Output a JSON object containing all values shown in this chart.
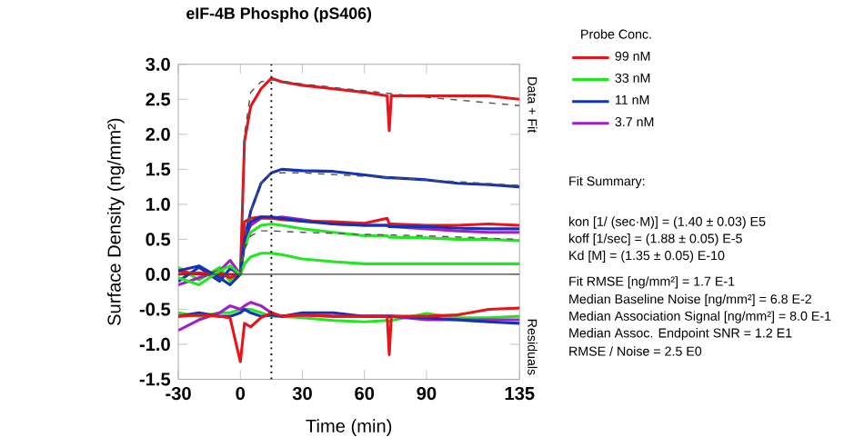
{
  "chart_data": {
    "type": "line",
    "title": "eIF-4B Phospho (pS406)",
    "xlabel": "Time (min)",
    "ylabel": "Surface Density (ng/mm²)",
    "legend_title": "Probe Conc.",
    "legend": "right",
    "line_style": "solid",
    "x": [
      -30,
      -20,
      -10,
      -5,
      0,
      2,
      5,
      10,
      15,
      20,
      30,
      45,
      60,
      71,
      72,
      73,
      90,
      105,
      120,
      135
    ],
    "xlim": [
      -30,
      135
    ],
    "ylim": [
      -1.5,
      3.0
    ],
    "xticks": [
      -30,
      0,
      30,
      60,
      90,
      135
    ],
    "yticks": [
      {
        "value": -1.5,
        "label": "-1.5"
      },
      {
        "value": -1.0,
        "label": "-1.0"
      },
      {
        "value": -0.5,
        "label": "-0.5"
      },
      {
        "value": 0,
        "label": "0.0"
      },
      {
        "value": 0.5,
        "label": "0.5"
      },
      {
        "value": 1.0,
        "label": "1.0"
      },
      {
        "value": 1.5,
        "label": "1.5"
      },
      {
        "value": 2.0,
        "label": "2.0"
      },
      {
        "value": 2.5,
        "label": "2.5"
      },
      {
        "value": 3.0,
        "label": "3.0"
      }
    ],
    "series": [
      {
        "name": "99 nM",
        "color": "#e8141a",
        "values": [
          0,
          0.02,
          -0.02,
          0,
          0,
          1.9,
          2.4,
          2.65,
          2.8,
          2.75,
          2.7,
          2.65,
          2.6,
          2.55,
          2.05,
          2.55,
          2.55,
          2.55,
          2.55,
          2.5
        ]
      },
      {
        "name": "33 nM",
        "color": "#22e622",
        "values": [
          0.1,
          -0.08,
          0.1,
          -0.1,
          0,
          0.4,
          0.6,
          0.7,
          0.72,
          0.7,
          0.65,
          0.6,
          0.55,
          0.55,
          0.53,
          0.53,
          0.52,
          0.5,
          0.5,
          0.48
        ]
      },
      {
        "name": "11 nM",
        "color": "#1432b4",
        "values": [
          -0.1,
          0.1,
          -0.1,
          0.08,
          0,
          0.5,
          0.9,
          1.3,
          1.45,
          1.5,
          1.48,
          1.47,
          1.42,
          1.38,
          1.38,
          1.38,
          1.35,
          1.3,
          1.28,
          1.25
        ]
      },
      {
        "name": "3.7 nM",
        "color": "#a020c8",
        "values": [
          -0.15,
          -0.05,
          0.05,
          0.2,
          0,
          0.5,
          0.7,
          0.8,
          0.8,
          0.82,
          0.78,
          0.72,
          0.7,
          0.7,
          0.68,
          0.68,
          0.65,
          0.62,
          0.6,
          0.6
        ]
      },
      {
        "color": "#e8141a",
        "values": [
          0.05,
          0,
          0.03,
          -0.05,
          0,
          0.75,
          0.8,
          0.82,
          0.8,
          0.78,
          0.76,
          0.75,
          0.73,
          0.8,
          0.72,
          0.72,
          0.7,
          0.7,
          0.72,
          0.7
        ]
      },
      {
        "color": "#1432b4",
        "values": [
          0.05,
          0.12,
          -0.05,
          -0.15,
          0,
          0.5,
          0.75,
          0.82,
          0.82,
          0.8,
          0.76,
          0.72,
          0.7,
          0.7,
          0.68,
          0.68,
          0.68,
          0.66,
          0.65,
          0.65
        ]
      },
      {
        "color": "#22e622",
        "values": [
          -0.05,
          -0.15,
          0.05,
          0.12,
          0,
          0.15,
          0.25,
          0.3,
          0.3,
          0.28,
          0.22,
          0.18,
          0.15,
          0.15,
          0.15,
          0.15,
          0.15,
          0.15,
          0.15,
          0.15
        ]
      },
      {
        "color": "#555555",
        "line_style": "dashed",
        "x": [
          0,
          2,
          5,
          10,
          15,
          30,
          60,
          90,
          135
        ],
        "values": [
          0,
          2.0,
          2.6,
          2.75,
          2.78,
          2.72,
          2.62,
          2.53,
          2.41
        ]
      },
      {
        "color": "#555555",
        "line_style": "dashed",
        "x": [
          0,
          2,
          5,
          10,
          15,
          30,
          60,
          90,
          135
        ],
        "values": [
          0,
          0.45,
          0.9,
          1.3,
          1.45,
          1.45,
          1.4,
          1.35,
          1.27
        ]
      },
      {
        "color": "#555555",
        "line_style": "dashed",
        "x": [
          0,
          2,
          5,
          10,
          15,
          30,
          60,
          90,
          135
        ],
        "values": [
          0,
          0.35,
          0.55,
          0.62,
          0.62,
          0.6,
          0.57,
          0.55,
          0.5
        ]
      },
      {
        "color": "#22e622",
        "values": [
          -0.55,
          -0.6,
          -0.55,
          -0.55,
          -0.5,
          -0.5,
          -0.5,
          -0.55,
          -0.6,
          -0.6,
          -0.62,
          -0.66,
          -0.68,
          -0.66,
          -0.68,
          -0.66,
          -0.56,
          -0.62,
          -0.62,
          -0.6
        ]
      },
      {
        "color": "#a020c8",
        "values": [
          -0.8,
          -0.65,
          -0.55,
          -0.45,
          -0.5,
          -0.45,
          -0.4,
          -0.45,
          -0.55,
          -0.6,
          -0.58,
          -0.6,
          -0.6,
          -0.6,
          -0.6,
          -0.6,
          -0.65,
          -0.65,
          -0.65,
          -0.65
        ]
      },
      {
        "color": "#1432b4",
        "values": [
          -0.6,
          -0.55,
          -0.6,
          -0.6,
          -0.55,
          -0.5,
          -0.55,
          -0.6,
          -0.58,
          -0.6,
          -0.55,
          -0.55,
          -0.6,
          -0.6,
          -0.6,
          -0.6,
          -0.62,
          -0.65,
          -0.68,
          -0.7
        ]
      },
      {
        "color": "#e8141a",
        "values": [
          -0.6,
          -0.58,
          -0.6,
          -0.62,
          -1.25,
          -0.7,
          -0.75,
          -0.62,
          -0.55,
          -0.6,
          -0.58,
          -0.6,
          -0.6,
          -0.6,
          -1.15,
          -0.6,
          -0.6,
          -0.58,
          -0.5,
          -0.48
        ]
      }
    ],
    "ref_lines": [
      {
        "axis": "y",
        "value": 0,
        "color": "#404040"
      },
      {
        "axis": "x",
        "value": 15,
        "color": "#000000",
        "line_style": "dotted"
      }
    ],
    "annotations": [
      "Data + Fit",
      "Residuals",
      "Fit Summary:",
      "kon  [1/ (sec·M)]  =   (1.40 ± 0.03) E5",
      "koff  [1/sec]  =   (1.88 ± 0.05) E-5",
      "Kd  [M]  =   (1.35 ± 0.05) E-10",
      "Fit RMSE [ng/mm²]  =   1.7 E-1",
      "Median Baseline Noise [ng/mm²]  =   6.8 E-2",
      "Median Association Signal [ng/mm²]  =   8.0 E-1",
      "Median Assoc. Endpoint SNR  =   1.2 E1",
      "RMSE / Noise  =   2.5 E0"
    ]
  }
}
